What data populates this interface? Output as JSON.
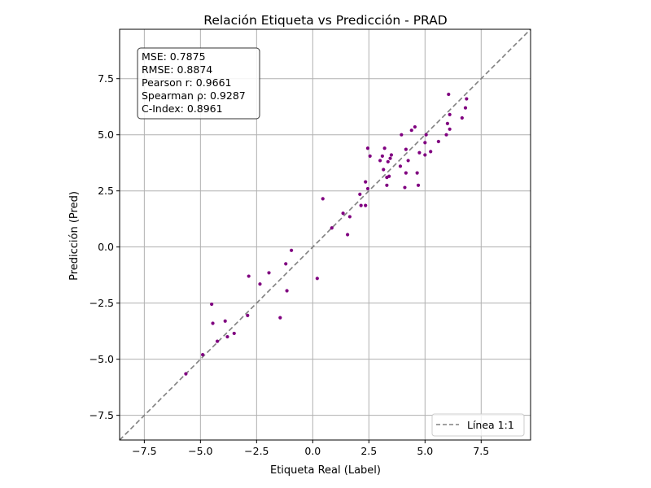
{
  "chart_data": {
    "type": "scatter",
    "title": "Relación Etiqueta vs Predicción - PRAD",
    "xlabel": "Etiqueta Real (Label)",
    "ylabel": "Predicción (Pred)",
    "xlim": [
      -8.6,
      9.7
    ],
    "ylim": [
      -8.6,
      9.7
    ],
    "xticks": [
      -7.5,
      -5.0,
      -2.5,
      0.0,
      2.5,
      5.0,
      7.5
    ],
    "yticks": [
      -7.5,
      -5.0,
      -2.5,
      0.0,
      2.5,
      5.0,
      7.5
    ],
    "xtick_labels": [
      "−7.5",
      "−5.0",
      "−2.5",
      "0.0",
      "2.5",
      "5.0",
      "7.5"
    ],
    "ytick_labels": [
      "−7.5",
      "−5.0",
      "−2.5",
      "0.0",
      "2.5",
      "5.0",
      "7.5"
    ],
    "grid": true,
    "point_color": "#800080",
    "line_color": "#808080",
    "stats": [
      "MSE: 0.7875",
      "RMSE: 0.8874",
      "Pearson r: 0.9661",
      "Spearman ρ: 0.9287",
      "C-Index: 0.8961"
    ],
    "legend": {
      "position": "lower-right",
      "entries": [
        "Línea 1:1"
      ]
    },
    "points": [
      [
        -5.65,
        -5.65
      ],
      [
        -4.9,
        -4.8
      ],
      [
        -4.5,
        -2.55
      ],
      [
        -4.45,
        -3.4
      ],
      [
        -4.25,
        -4.2
      ],
      [
        -3.9,
        -3.3
      ],
      [
        -3.8,
        -4.0
      ],
      [
        -3.5,
        -3.85
      ],
      [
        -2.9,
        -3.05
      ],
      [
        -2.85,
        -1.3
      ],
      [
        -2.35,
        -1.65
      ],
      [
        -1.95,
        -1.15
      ],
      [
        -1.45,
        -3.15
      ],
      [
        -1.2,
        -0.75
      ],
      [
        -1.15,
        -1.95
      ],
      [
        -0.95,
        -0.15
      ],
      [
        0.2,
        -1.4
      ],
      [
        0.45,
        2.15
      ],
      [
        0.85,
        0.85
      ],
      [
        1.35,
        1.5
      ],
      [
        1.55,
        0.55
      ],
      [
        1.65,
        1.35
      ],
      [
        2.1,
        2.35
      ],
      [
        2.15,
        1.85
      ],
      [
        2.35,
        2.9
      ],
      [
        2.35,
        1.85
      ],
      [
        2.45,
        2.6
      ],
      [
        2.45,
        4.4
      ],
      [
        2.55,
        4.05
      ],
      [
        3.0,
        3.85
      ],
      [
        3.1,
        4.05
      ],
      [
        3.15,
        3.45
      ],
      [
        3.2,
        4.4
      ],
      [
        3.3,
        3.1
      ],
      [
        3.3,
        2.75
      ],
      [
        3.35,
        3.8
      ],
      [
        3.4,
        3.15
      ],
      [
        3.45,
        3.95
      ],
      [
        3.5,
        4.1
      ],
      [
        3.9,
        3.6
      ],
      [
        3.95,
        5.0
      ],
      [
        4.1,
        2.65
      ],
      [
        4.15,
        3.3
      ],
      [
        4.15,
        4.35
      ],
      [
        4.25,
        3.85
      ],
      [
        4.4,
        5.2
      ],
      [
        4.55,
        5.35
      ],
      [
        4.65,
        3.3
      ],
      [
        4.7,
        2.75
      ],
      [
        4.75,
        4.2
      ],
      [
        5.0,
        4.1
      ],
      [
        5.0,
        4.65
      ],
      [
        5.05,
        5.0
      ],
      [
        5.25,
        4.25
      ],
      [
        5.6,
        4.7
      ],
      [
        5.95,
        5.0
      ],
      [
        6.0,
        5.5
      ],
      [
        6.05,
        6.8
      ],
      [
        6.1,
        5.9
      ],
      [
        6.1,
        5.25
      ],
      [
        6.65,
        5.75
      ],
      [
        6.8,
        6.2
      ],
      [
        6.85,
        6.6
      ]
    ]
  }
}
